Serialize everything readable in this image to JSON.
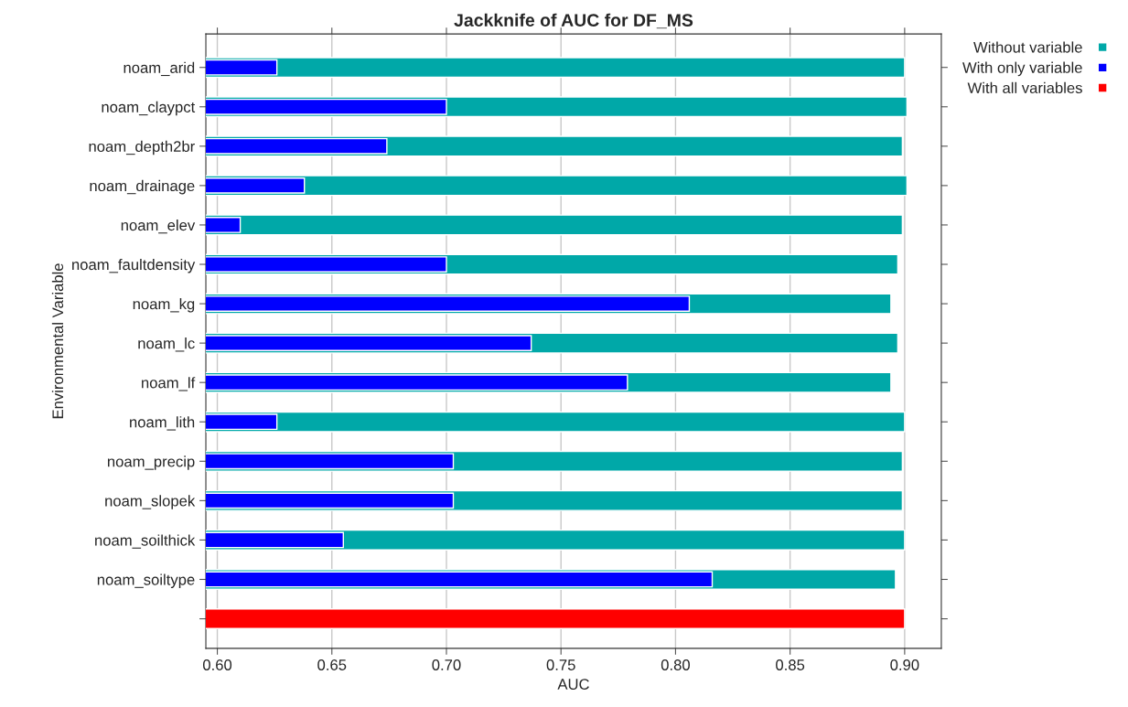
{
  "chart_data": {
    "type": "bar",
    "orientation": "horizontal",
    "title": "Jackknife of AUC for DF_MS",
    "xlabel": "AUC",
    "ylabel": "Environmental Variable",
    "categories": [
      "noam_arid",
      "noam_claypct",
      "noam_depth2br",
      "noam_drainage",
      "noam_elev",
      "noam_faultdensity",
      "noam_kg",
      "noam_lc",
      "noam_lf",
      "noam_lith",
      "noam_precip",
      "noam_slopek",
      "noam_soilthick",
      "noam_soiltype",
      null
    ],
    "series": [
      {
        "name": "Without variable",
        "color": "#00a8a8",
        "values": [
          0.9,
          0.901,
          0.899,
          0.901,
          0.899,
          0.897,
          0.894,
          0.897,
          0.894,
          0.9,
          0.899,
          0.899,
          0.9,
          0.896,
          null
        ]
      },
      {
        "name": "With only variable",
        "color": "#0000ff",
        "values": [
          0.626,
          0.7,
          0.674,
          0.638,
          0.61,
          0.7,
          0.806,
          0.737,
          0.779,
          0.626,
          0.703,
          0.703,
          0.655,
          0.816,
          null
        ]
      },
      {
        "name": "With all variables",
        "color": "#ff0000",
        "values": [
          null,
          null,
          null,
          null,
          null,
          null,
          null,
          null,
          null,
          null,
          null,
          null,
          null,
          null,
          0.9
        ]
      }
    ],
    "xlim": [
      0.595,
      0.916
    ],
    "xticks": [
      {
        "value": 0.6,
        "label": "0.60"
      },
      {
        "value": 0.65,
        "label": "0.65"
      },
      {
        "value": 0.7,
        "label": "0.70"
      },
      {
        "value": 0.75,
        "label": "0.75"
      },
      {
        "value": 0.8,
        "label": "0.80"
      },
      {
        "value": 0.85,
        "label": "0.85"
      },
      {
        "value": 0.9,
        "label": "0.90"
      }
    ],
    "grid": "x",
    "legend": "top right"
  }
}
